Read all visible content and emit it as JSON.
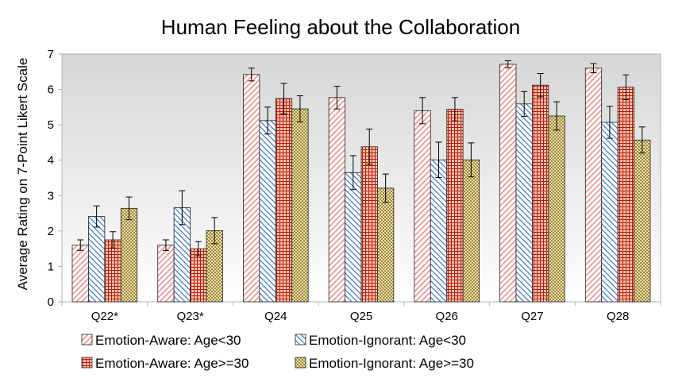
{
  "chart_data": {
    "type": "bar",
    "title": "Human Feeling about the Collaboration",
    "xlabel": "",
    "ylabel": "Average Rating on 7-Point Likert Scale",
    "ylim": [
      0,
      7
    ],
    "yticks": [
      "0",
      "1",
      "2",
      "3",
      "4",
      "5",
      "6",
      "7"
    ],
    "categories": [
      "Q22*",
      "Q23*",
      "Q24",
      "Q25",
      "Q26",
      "Q27",
      "Q28"
    ],
    "series": [
      {
        "name": "Emotion-Aware: Age<30",
        "color": "#f08080",
        "pattern": "diagonal-right",
        "values": [
          1.6,
          1.6,
          6.42,
          5.77,
          5.4,
          6.71,
          6.6
        ],
        "errors": [
          0.15,
          0.15,
          0.18,
          0.32,
          0.37,
          0.1,
          0.13
        ]
      },
      {
        "name": "Emotion-Ignorant: Age<30",
        "color": "#3c78c8",
        "pattern": "diagonal-left",
        "values": [
          2.41,
          2.66,
          5.12,
          3.65,
          4.01,
          5.59,
          5.07
        ],
        "errors": [
          0.3,
          0.48,
          0.38,
          0.48,
          0.5,
          0.35,
          0.45
        ]
      },
      {
        "name": "Emotion-Aware: Age>=30",
        "color": "#c01818",
        "pattern": "grid",
        "values": [
          1.75,
          1.5,
          5.74,
          4.38,
          5.44,
          6.12,
          6.06
        ],
        "errors": [
          0.23,
          0.2,
          0.43,
          0.5,
          0.33,
          0.33,
          0.35
        ]
      },
      {
        "name": "Emotion-Ignorant: Age>=30",
        "color": "#a08830",
        "pattern": "checker",
        "values": [
          2.64,
          2.01,
          5.45,
          3.21,
          4.01,
          5.25,
          4.57
        ],
        "errors": [
          0.32,
          0.37,
          0.37,
          0.4,
          0.48,
          0.4,
          0.37
        ]
      }
    ],
    "grid": false,
    "legend_position": "bottom",
    "plot_background": "#d9d9d9"
  }
}
